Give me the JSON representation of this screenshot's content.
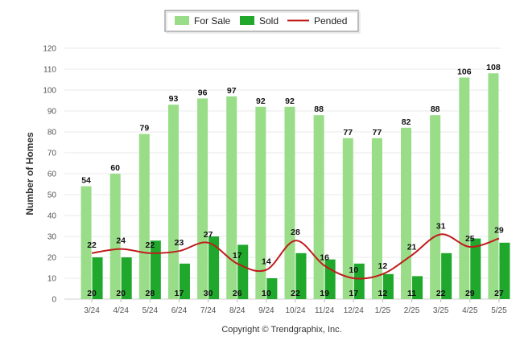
{
  "chart_data": {
    "type": "bar",
    "categories": [
      "3/24",
      "4/24",
      "5/24",
      "6/24",
      "7/24",
      "8/24",
      "9/24",
      "10/24",
      "11/24",
      "12/24",
      "1/25",
      "2/25",
      "3/25",
      "4/25",
      "5/25"
    ],
    "series": [
      {
        "name": "For Sale",
        "kind": "bar",
        "color": "#99dd88",
        "values": [
          54,
          60,
          79,
          93,
          96,
          97,
          92,
          92,
          88,
          77,
          77,
          82,
          88,
          106,
          108
        ]
      },
      {
        "name": "Sold",
        "kind": "bar",
        "color": "#1fa82c",
        "values": [
          20,
          20,
          28,
          17,
          30,
          26,
          10,
          22,
          19,
          17,
          12,
          11,
          22,
          29,
          27
        ]
      },
      {
        "name": "Pended",
        "kind": "line",
        "color": "#c01c1c",
        "values": [
          22,
          24,
          22,
          23,
          27,
          17,
          14,
          28,
          16,
          10,
          12,
          21,
          31,
          25,
          29
        ]
      }
    ],
    "ylabel": "Number of Homes",
    "xlabel": "",
    "ylim": [
      0,
      120
    ],
    "yticks": [
      0,
      10,
      20,
      30,
      40,
      50,
      60,
      70,
      80,
      90,
      100,
      110,
      120
    ],
    "grid": true,
    "legend": "top-center",
    "footer": "Copyright © Trendgraphix, Inc."
  }
}
